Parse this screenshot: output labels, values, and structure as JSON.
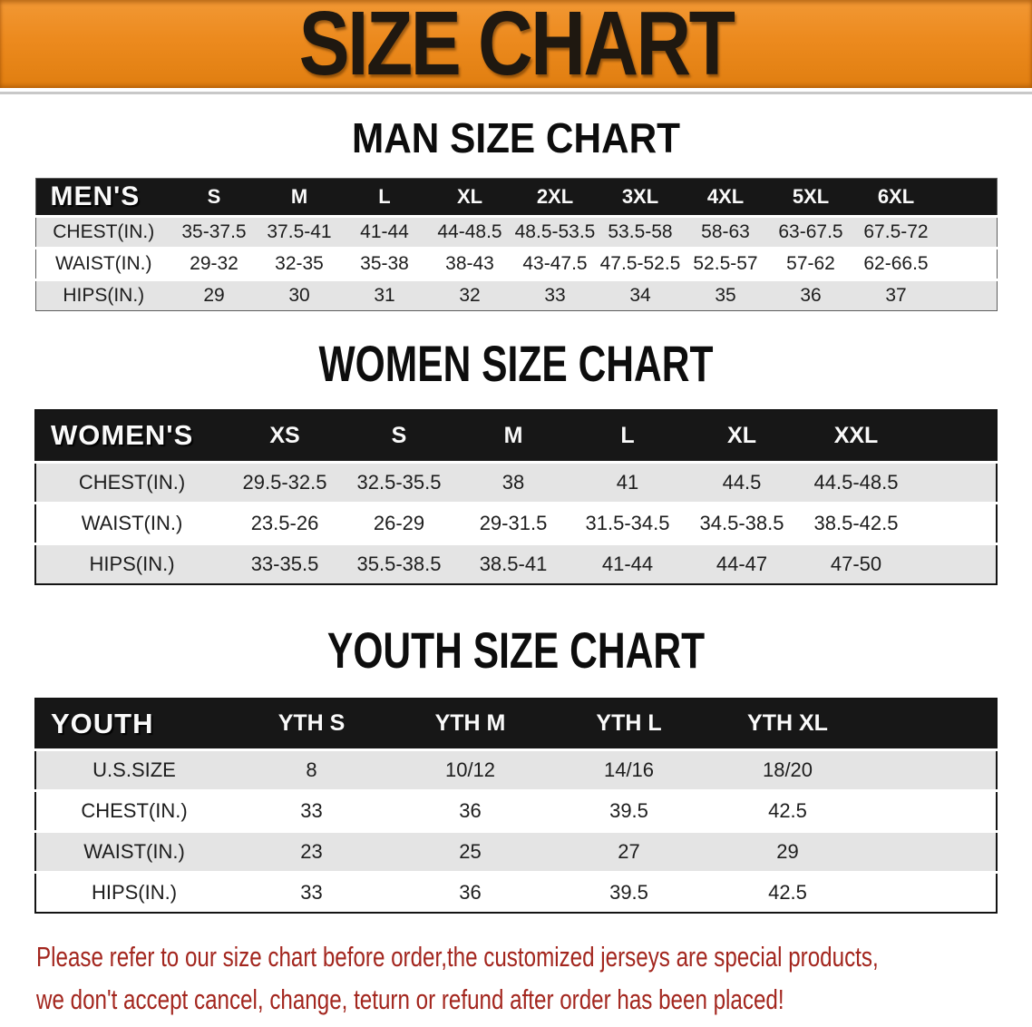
{
  "banner": {
    "title": "SIZE CHART"
  },
  "colors": {
    "banner_orange": "#ec8a1e",
    "table_header_black": "#171717",
    "row_gray": "#e4e4e4",
    "notice_red": "#a3261e"
  },
  "sections": [
    {
      "id": "men",
      "heading": "MAN SIZE CHART",
      "table": {
        "label": "MEN'S",
        "columns": [
          "S",
          "M",
          "L",
          "XL",
          "2XL",
          "3XL",
          "4XL",
          "5XL",
          "6XL"
        ],
        "rows": [
          {
            "label": "CHEST(IN.)",
            "values": [
              "35-37.5",
              "37.5-41",
              "41-44",
              "44-48.5",
              "48.5-53.5",
              "53.5-58",
              "58-63",
              "63-67.5",
              "67.5-72"
            ]
          },
          {
            "label": "WAIST(IN.)",
            "values": [
              "29-32",
              "32-35",
              "35-38",
              "38-43",
              "43-47.5",
              "47.5-52.5",
              "52.5-57",
              "57-62",
              "62-66.5"
            ]
          },
          {
            "label": "HIPS(IN.)",
            "values": [
              "29",
              "30",
              "31",
              "32",
              "33",
              "34",
              "35",
              "36",
              "37"
            ]
          }
        ]
      }
    },
    {
      "id": "women",
      "heading": "WOMEN SIZE CHART",
      "table": {
        "label": "WOMEN'S",
        "columns": [
          "XS",
          "S",
          "M",
          "L",
          "XL",
          "XXL"
        ],
        "rows": [
          {
            "label": "CHEST(IN.)",
            "values": [
              "29.5-32.5",
              "32.5-35.5",
              "38",
              "41",
              "44.5",
              "44.5-48.5"
            ]
          },
          {
            "label": "WAIST(IN.)",
            "values": [
              "23.5-26",
              "26-29",
              "29-31.5",
              "31.5-34.5",
              "34.5-38.5",
              "38.5-42.5"
            ]
          },
          {
            "label": "HIPS(IN.)",
            "values": [
              "33-35.5",
              "35.5-38.5",
              "38.5-41",
              "41-44",
              "44-47",
              "47-50"
            ]
          }
        ]
      }
    },
    {
      "id": "youth",
      "heading": "YOUTH SIZE CHART",
      "table": {
        "label": "YOUTH",
        "columns": [
          "YTH S",
          "YTH M",
          "YTH L",
          "YTH XL"
        ],
        "rows": [
          {
            "label": "U.S.SIZE",
            "values": [
              "8",
              "10/12",
              "14/16",
              "18/20"
            ]
          },
          {
            "label": "CHEST(IN.)",
            "values": [
              "33",
              "36",
              "39.5",
              "42.5"
            ]
          },
          {
            "label": "WAIST(IN.)",
            "values": [
              "23",
              "25",
              "27",
              "29"
            ]
          },
          {
            "label": "HIPS(IN.)",
            "values": [
              "33",
              "36",
              "39.5",
              "42.5"
            ]
          }
        ]
      }
    }
  ],
  "footer": {
    "line1": "Please refer to our size chart before order,the customized jerseys are special products,",
    "line2": "we don't accept cancel, change, teturn or refund after order has been placed!"
  }
}
